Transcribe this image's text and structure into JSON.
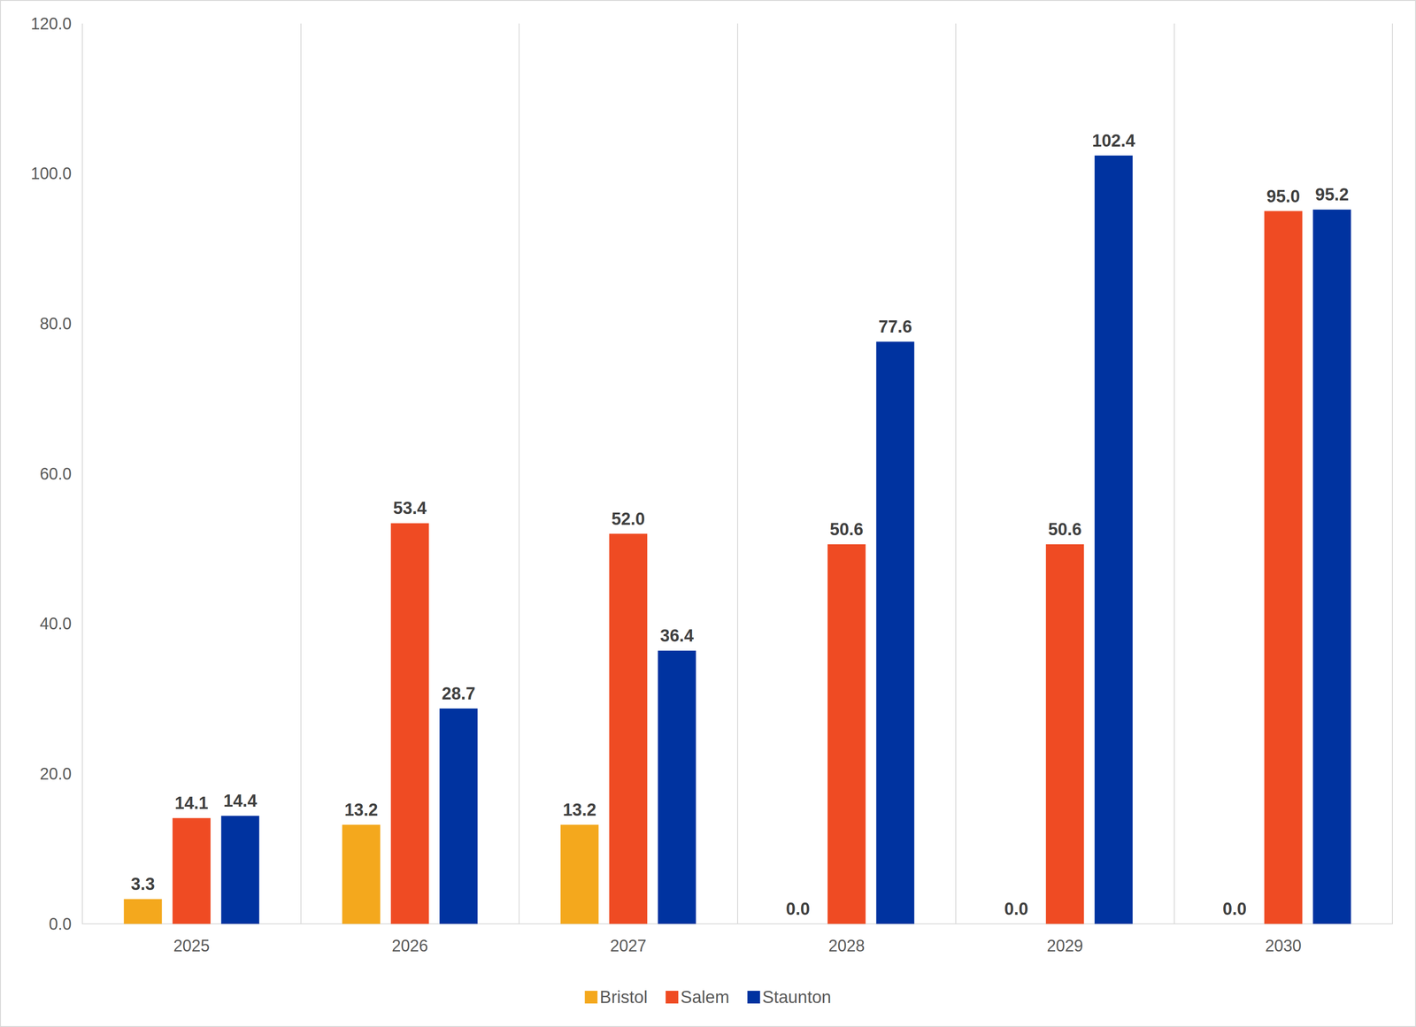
{
  "chart_data": {
    "type": "bar",
    "categories": [
      "2025",
      "2026",
      "2027",
      "2028",
      "2029",
      "2030"
    ],
    "series": [
      {
        "name": "Bristol",
        "color": "#f4a81d",
        "values": [
          3.3,
          13.2,
          13.2,
          0.0,
          0.0,
          0.0
        ],
        "value_labels": [
          "3.3",
          "13.2",
          "13.2",
          "0.0",
          "0.0",
          "0.0"
        ]
      },
      {
        "name": "Salem",
        "color": "#ef4b23",
        "values": [
          14.1,
          53.4,
          52.0,
          50.6,
          50.6,
          95.0
        ],
        "value_labels": [
          "14.1",
          "53.4",
          "52.0",
          "50.6",
          "50.6",
          "95.0"
        ]
      },
      {
        "name": "Staunton",
        "color": "#0033a0",
        "values": [
          14.4,
          28.7,
          36.4,
          77.6,
          102.4,
          95.2
        ],
        "value_labels": [
          "14.4",
          "28.7",
          "36.4",
          "77.6",
          "102.4",
          "95.2"
        ]
      }
    ],
    "ylim": [
      0,
      120
    ],
    "yticks": [
      {
        "value": 0,
        "label": "0.0"
      },
      {
        "value": 20,
        "label": "20.0"
      },
      {
        "value": 40,
        "label": "40.0"
      },
      {
        "value": 60,
        "label": "60.0"
      },
      {
        "value": 80,
        "label": "80.0"
      },
      {
        "value": 100,
        "label": "100.0"
      },
      {
        "value": 120,
        "label": "120.0"
      }
    ],
    "grid": true,
    "legend": "bottom",
    "data_labels": true
  }
}
